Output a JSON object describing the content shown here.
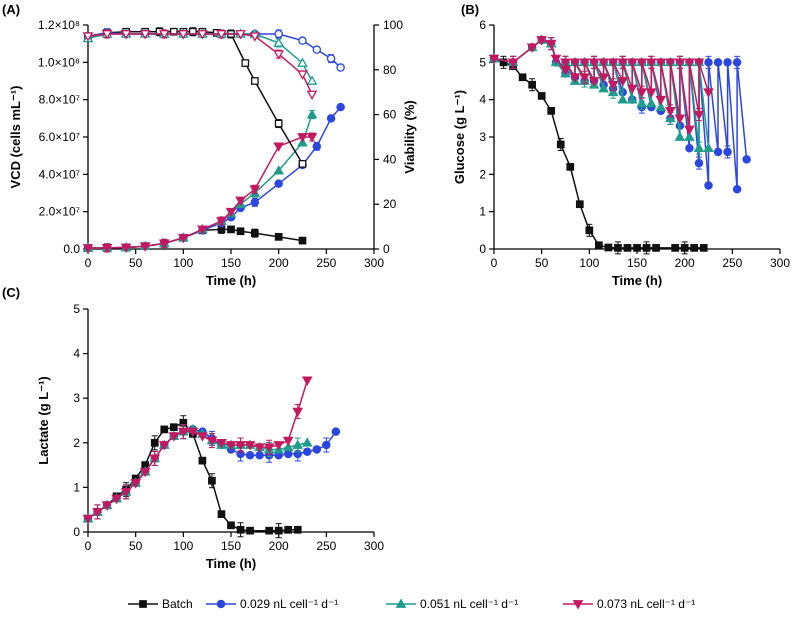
{
  "colors": {
    "batch": "#111111",
    "f029": "#2C46E0",
    "f051": "#1F9C8C",
    "f073": "#C4185F"
  },
  "legend": {
    "items": [
      {
        "name": "Batch",
        "color": "#111111",
        "marker": "square"
      },
      {
        "name": "0.029 nL cell⁻¹ d⁻¹",
        "color": "#2C46E0",
        "marker": "circle"
      },
      {
        "name": "0.051 nL cell⁻¹ d⁻¹",
        "color": "#1F9C8C",
        "marker": "triangle-up"
      },
      {
        "name": "0.073 nL cell⁻¹ d⁻¹",
        "color": "#C4185F",
        "marker": "triangle-down"
      }
    ]
  },
  "chart_data": [
    {
      "panel": "(A)",
      "type": "line",
      "xlabel": "Time (h)",
      "ylabel": "VCD (cells mL⁻¹)",
      "y2label": "Viability (%)",
      "xlim": [
        0,
        300
      ],
      "ylim": [
        0,
        120000000
      ],
      "y2lim": [
        0,
        100
      ],
      "xticks": [
        "0",
        "50",
        "100",
        "150",
        "200",
        "250",
        "300"
      ],
      "yticks": [
        "0.0",
        "2.0×10⁷",
        "4.0×10⁷",
        "6.0×10⁷",
        "8.0×10⁷",
        "1.0×10⁸",
        "1.2×10⁸"
      ],
      "y2ticks": [
        "0",
        "20",
        "40",
        "60",
        "80",
        "100"
      ],
      "series": [
        {
          "name": "Batch VCD",
          "color": "#111111",
          "marker": "square",
          "filled": true,
          "axis": "left",
          "x": [
            0,
            20,
            40,
            60,
            80,
            100,
            120,
            140,
            150,
            160,
            175,
            200,
            225
          ],
          "y": [
            0.5,
            0.6,
            0.8,
            1.5,
            3.0,
            6.0,
            10.0,
            10.5,
            10.5,
            9.5,
            8.5,
            6.5,
            4.5
          ]
        },
        {
          "name": "0.029 VCD",
          "color": "#2C46E0",
          "marker": "circle",
          "filled": true,
          "axis": "left",
          "x": [
            0,
            20,
            40,
            60,
            80,
            100,
            120,
            140,
            150,
            160,
            175,
            200,
            225,
            240,
            255,
            265
          ],
          "y": [
            0.5,
            0.6,
            0.8,
            1.5,
            3.0,
            6.0,
            10.0,
            14.0,
            17.0,
            22.0,
            25.0,
            35.0,
            45.0,
            55.0,
            70.0,
            76.0
          ]
        },
        {
          "name": "0.051 VCD",
          "color": "#1F9C8C",
          "marker": "triangle-up",
          "filled": true,
          "axis": "left",
          "x": [
            0,
            20,
            40,
            60,
            80,
            100,
            120,
            140,
            150,
            160,
            175,
            200,
            225,
            235
          ],
          "y": [
            0.5,
            0.6,
            0.8,
            1.5,
            3.0,
            6.0,
            10.5,
            15.0,
            19.0,
            24.0,
            30.0,
            42.0,
            57.0,
            72.0
          ]
        },
        {
          "name": "0.073 VCD",
          "color": "#C4185F",
          "marker": "triangle-down",
          "filled": true,
          "axis": "left",
          "x": [
            0,
            20,
            40,
            60,
            80,
            100,
            120,
            140,
            150,
            160,
            175,
            200,
            225,
            235
          ],
          "y": [
            0.5,
            0.6,
            0.8,
            1.5,
            3.0,
            6.0,
            10.5,
            15.0,
            20.0,
            26.0,
            32.0,
            55.0,
            60.0,
            60.0
          ]
        },
        {
          "name": "Batch Viability",
          "color": "#111111",
          "marker": "square",
          "filled": false,
          "axis": "right",
          "x": [
            0,
            20,
            40,
            60,
            75,
            90,
            100,
            110,
            120,
            135,
            150,
            165,
            175,
            200,
            225
          ],
          "y": [
            95,
            96.5,
            97,
            97,
            97,
            97,
            97,
            97,
            97,
            96.5,
            96,
            83,
            75,
            56,
            38
          ]
        },
        {
          "name": "0.029 Viability",
          "color": "#2C46E0",
          "marker": "circle",
          "filled": false,
          "axis": "right",
          "x": [
            0,
            20,
            40,
            60,
            80,
            100,
            120,
            140,
            160,
            175,
            200,
            225,
            240,
            255,
            265
          ],
          "y": [
            95,
            96.5,
            96,
            96,
            96,
            96,
            96,
            96,
            96,
            96,
            96,
            93,
            89,
            85,
            81
          ]
        },
        {
          "name": "0.051 Viability",
          "color": "#1F9C8C",
          "marker": "triangle-up",
          "filled": false,
          "axis": "right",
          "x": [
            0,
            20,
            40,
            60,
            80,
            100,
            120,
            140,
            160,
            175,
            200,
            225,
            235
          ],
          "y": [
            94,
            96,
            96,
            96,
            96,
            96,
            96,
            96,
            96,
            96,
            92,
            83,
            75
          ]
        },
        {
          "name": "0.073 Viability",
          "color": "#C4185F",
          "marker": "triangle-down",
          "filled": false,
          "axis": "right",
          "x": [
            0,
            20,
            40,
            60,
            80,
            100,
            120,
            140,
            160,
            175,
            200,
            225,
            235
          ],
          "y": [
            95,
            96,
            96,
            96,
            96,
            96,
            96,
            96,
            96,
            95,
            87,
            78,
            69
          ]
        }
      ]
    },
    {
      "panel": "(B)",
      "type": "line",
      "xlabel": "Time (h)",
      "ylabel": "Glucose (g L⁻¹)",
      "xlim": [
        0,
        300
      ],
      "ylim": [
        0,
        6
      ],
      "xticks": [
        "0",
        "50",
        "100",
        "150",
        "200",
        "250",
        "300"
      ],
      "yticks": [
        "0",
        "1",
        "2",
        "3",
        "4",
        "5",
        "6"
      ],
      "series": [
        {
          "name": "Batch",
          "color": "#111111",
          "marker": "square",
          "filled": true,
          "x": [
            0,
            10,
            20,
            30,
            40,
            50,
            60,
            70,
            80,
            90,
            100,
            110,
            120,
            130,
            140,
            150,
            160,
            170,
            190,
            200,
            210,
            220
          ],
          "y": [
            5.1,
            5.0,
            4.9,
            4.6,
            4.4,
            4.1,
            3.7,
            2.8,
            2.2,
            1.2,
            0.5,
            0.1,
            0.04,
            0.03,
            0.03,
            0.03,
            0.03,
            0.03,
            0.03,
            0.03,
            0.03,
            0.03
          ]
        },
        {
          "name": "0.029 nL cell-1 d-1",
          "color": "#2C46E0",
          "marker": "circle",
          "filled": true,
          "x": [
            0,
            20,
            40,
            50,
            60,
            65,
            75,
            75,
            85,
            85,
            95,
            95,
            105,
            105,
            115,
            115,
            125,
            125,
            135,
            135,
            145,
            145,
            155,
            155,
            165,
            165,
            175,
            175,
            185,
            185,
            195,
            195,
            205,
            205,
            215,
            215,
            225,
            225,
            235,
            235,
            245,
            245,
            255,
            255,
            265
          ],
          "y": [
            5.1,
            5.0,
            5.4,
            5.6,
            5.5,
            5.0,
            4.7,
            5.0,
            4.6,
            5.0,
            4.5,
            5.0,
            4.5,
            5.0,
            4.4,
            5.0,
            4.3,
            5.0,
            4.2,
            5.0,
            4.0,
            5.0,
            3.8,
            5.0,
            3.8,
            5.0,
            3.7,
            5.0,
            3.5,
            5.0,
            3.3,
            5.0,
            2.7,
            5.0,
            2.3,
            5.0,
            1.7,
            5.0,
            2.6,
            5.0,
            2.6,
            5.0,
            1.6,
            5.0,
            2.4
          ]
        },
        {
          "name": "0.051 nL cell-1 d-1",
          "color": "#1F9C8C",
          "marker": "triangle-up",
          "filled": true,
          "x": [
            0,
            20,
            40,
            50,
            60,
            65,
            75,
            75,
            85,
            85,
            95,
            95,
            105,
            105,
            115,
            115,
            125,
            125,
            135,
            135,
            145,
            145,
            155,
            155,
            165,
            165,
            175,
            175,
            185,
            185,
            195,
            195,
            205,
            205,
            215,
            215,
            225
          ],
          "y": [
            5.1,
            5.0,
            5.4,
            5.6,
            5.5,
            5.0,
            4.7,
            5.0,
            4.5,
            5.0,
            4.5,
            5.0,
            4.4,
            5.0,
            4.3,
            5.0,
            4.2,
            5.0,
            4.0,
            5.0,
            4.0,
            5.0,
            3.9,
            5.0,
            3.9,
            5.0,
            3.8,
            5.0,
            3.5,
            5.0,
            3.0,
            5.0,
            3.0,
            5.0,
            2.7,
            5.0,
            2.7
          ]
        },
        {
          "name": "0.073 nL cell-1 d-1",
          "color": "#C4185F",
          "marker": "triangle-down",
          "filled": true,
          "x": [
            0,
            20,
            40,
            50,
            60,
            65,
            75,
            75,
            85,
            85,
            95,
            95,
            105,
            105,
            115,
            115,
            125,
            125,
            135,
            135,
            145,
            145,
            155,
            155,
            165,
            165,
            175,
            175,
            185,
            185,
            195,
            195,
            205,
            205,
            215,
            215,
            225
          ],
          "y": [
            5.1,
            5.0,
            5.4,
            5.6,
            5.5,
            5.1,
            4.8,
            5.0,
            4.6,
            5.0,
            4.6,
            5.0,
            4.5,
            5.0,
            4.6,
            5.0,
            4.4,
            5.0,
            4.5,
            5.0,
            4.3,
            5.0,
            4.2,
            5.0,
            4.2,
            5.0,
            4.0,
            5.0,
            3.7,
            5.0,
            3.5,
            5.0,
            3.2,
            5.0,
            3.6,
            5.0,
            4.2
          ]
        }
      ]
    },
    {
      "panel": "(C)",
      "type": "line",
      "xlabel": "Time (h)",
      "ylabel": "Lactate (g L⁻¹)",
      "xlim": [
        0,
        300
      ],
      "ylim": [
        0,
        5
      ],
      "xticks": [
        "0",
        "50",
        "100",
        "150",
        "200",
        "250",
        "300"
      ],
      "yticks": [
        "0",
        "1",
        "2",
        "3",
        "4",
        "5"
      ],
      "series": [
        {
          "name": "Batch",
          "color": "#111111",
          "marker": "square",
          "filled": true,
          "x": [
            0,
            10,
            20,
            30,
            40,
            50,
            60,
            70,
            80,
            90,
            100,
            110,
            120,
            130,
            140,
            150,
            160,
            170,
            190,
            200,
            210,
            220
          ],
          "y": [
            0.3,
            0.45,
            0.6,
            0.8,
            0.95,
            1.2,
            1.5,
            2.0,
            2.3,
            2.35,
            2.45,
            2.2,
            1.6,
            1.15,
            0.4,
            0.15,
            0.05,
            0.03,
            0.03,
            0.03,
            0.05,
            0.05
          ]
        },
        {
          "name": "0.029 nL cell-1 d-1",
          "color": "#2C46E0",
          "marker": "circle",
          "filled": true,
          "x": [
            0,
            10,
            20,
            30,
            40,
            50,
            60,
            70,
            80,
            90,
            100,
            110,
            120,
            130,
            140,
            150,
            160,
            170,
            180,
            190,
            200,
            210,
            220,
            230,
            240,
            250,
            260
          ],
          "y": [
            0.3,
            0.45,
            0.6,
            0.75,
            0.9,
            1.1,
            1.35,
            1.65,
            1.95,
            2.15,
            2.25,
            2.3,
            2.25,
            2.1,
            1.95,
            1.85,
            1.75,
            1.72,
            1.72,
            1.72,
            1.72,
            1.75,
            1.75,
            1.8,
            1.85,
            1.95,
            2.25
          ]
        },
        {
          "name": "0.051 nL cell-1 d-1",
          "color": "#1F9C8C",
          "marker": "triangle-up",
          "filled": true,
          "x": [
            0,
            10,
            20,
            30,
            40,
            50,
            60,
            70,
            80,
            90,
            100,
            110,
            120,
            130,
            140,
            150,
            160,
            170,
            180,
            190,
            200,
            210,
            220,
            230
          ],
          "y": [
            0.3,
            0.45,
            0.6,
            0.75,
            0.9,
            1.1,
            1.35,
            1.65,
            1.95,
            2.15,
            2.25,
            2.3,
            2.2,
            2.05,
            1.95,
            1.95,
            1.95,
            1.95,
            1.9,
            1.85,
            1.85,
            1.9,
            1.95,
            2.0
          ]
        },
        {
          "name": "0.073 nL cell-1 d-1",
          "color": "#C4185F",
          "marker": "triangle-down",
          "filled": true,
          "x": [
            0,
            10,
            20,
            30,
            40,
            50,
            60,
            70,
            80,
            90,
            100,
            110,
            120,
            130,
            140,
            150,
            160,
            170,
            180,
            190,
            200,
            210,
            220,
            230
          ],
          "y": [
            0.3,
            0.45,
            0.6,
            0.75,
            0.9,
            1.1,
            1.35,
            1.65,
            1.95,
            2.15,
            2.25,
            2.25,
            2.15,
            2.05,
            2.0,
            1.95,
            1.95,
            1.95,
            1.9,
            1.9,
            1.95,
            2.05,
            2.7,
            3.4
          ]
        }
      ]
    }
  ]
}
